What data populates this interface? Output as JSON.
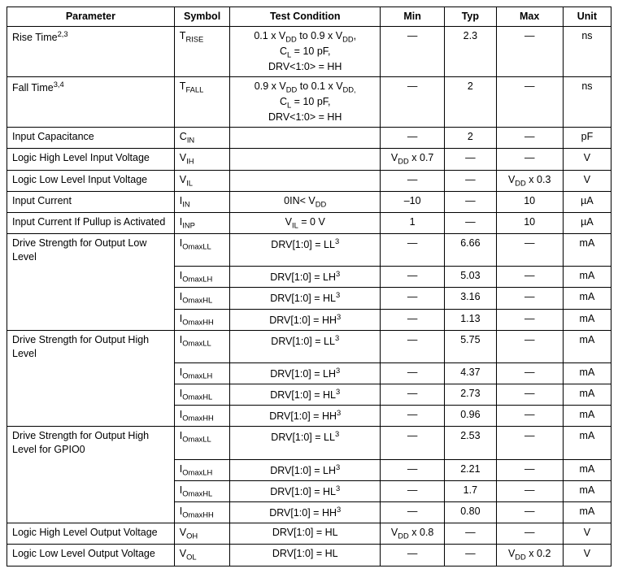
{
  "headers": {
    "parameter": "Parameter",
    "symbol": "Symbol",
    "condition": "Test Condition",
    "min": "Min",
    "typ": "Typ",
    "max": "Max",
    "unit": "Unit"
  },
  "dash": "—",
  "rise": {
    "param_base": "Rise Time",
    "param_sup": "2,3",
    "sym_pre": "T",
    "sym_sub": "RISE",
    "cond_l1a": "0.1 x V",
    "cond_l1b": " to 0.9 x V",
    "cond_l1c": ",",
    "cond_sub_dd": "DD",
    "cond_l2a": "C",
    "cond_l2b": " = 10 pF,",
    "cond_sub_l": "L",
    "cond_l3": "DRV<1:0> = HH",
    "typ": "2.3",
    "unit": "ns"
  },
  "fall": {
    "param_base": "Fall Time",
    "param_sup": "3,4",
    "sym_pre": "T",
    "sym_sub": "FALL",
    "cond_l1a": "0.9 x V",
    "cond_l1b": " to 0.1 x V",
    "cond_l1c": "",
    "cond_sub_dd": "DD",
    "cond_sub_dd2": "DD,",
    "cond_l2a": "C",
    "cond_l2b": " = 10 pF,",
    "cond_sub_l": "L",
    "cond_l3": "DRV<1:0> = HH",
    "typ": "2",
    "unit": "ns"
  },
  "cin": {
    "param": "Input Capacitance",
    "sym_pre": "C",
    "sym_sub": "IN",
    "typ": "2",
    "unit": "pF"
  },
  "vih": {
    "param": "Logic High Level Input Voltage",
    "sym_pre": "V",
    "sym_sub": "IH",
    "min_a": "V",
    "min_sub": "DD",
    "min_b": " x 0.7",
    "unit": "V"
  },
  "vil": {
    "param": "Logic Low Level Input Voltage",
    "sym_pre": "V",
    "sym_sub": "IL",
    "max_a": "V",
    "max_sub": "DD",
    "max_b": " x 0.3",
    "unit": "V"
  },
  "iin": {
    "param": "Input Current",
    "sym_pre": "I",
    "sym_sub": "IN",
    "cond_a": "0<V",
    "cond_sub1": "IN",
    "cond_b": "< V",
    "cond_sub2": "DD",
    "min": "–10",
    "max": "10",
    "unit": "µA"
  },
  "iinp": {
    "param": "Input Current If Pullup is Activated",
    "sym_pre": "I",
    "sym_sub": "INP",
    "cond_a": "V",
    "cond_sub": "IL",
    "cond_b": " = 0 V",
    "min": "1",
    "max": "10",
    "unit": "µA"
  },
  "drv_low": {
    "param_l1": "Drive Strength for Output Low",
    "param_l2": "Level",
    "rows": [
      {
        "sym_sub": "OmaxLL",
        "cond": "DRV[1:0] = LL",
        "typ": "6.66"
      },
      {
        "sym_sub": "OmaxLH",
        "cond": "DRV[1:0] = LH",
        "typ": "5.03"
      },
      {
        "sym_sub": "OmaxHL",
        "cond": "DRV[1:0] = HL",
        "typ": "3.16"
      },
      {
        "sym_sub": "OmaxHH",
        "cond": "DRV[1:0] = HH",
        "typ": "1.13"
      }
    ],
    "sym_pre": "I",
    "cond_sup": "3",
    "unit": "mA"
  },
  "drv_high": {
    "param_l1": "Drive Strength for Output High",
    "param_l2": "Level",
    "rows": [
      {
        "sym_sub": "OmaxLL",
        "cond": "DRV[1:0] = LL",
        "typ": "5.75"
      },
      {
        "sym_sub": "OmaxLH",
        "cond": "DRV[1:0] = LH",
        "typ": "4.37"
      },
      {
        "sym_sub": "OmaxHL",
        "cond": "DRV[1:0] = HL",
        "typ": "2.73"
      },
      {
        "sym_sub": "OmaxHH",
        "cond": "DRV[1:0] = HH",
        "typ": "0.96"
      }
    ],
    "sym_pre": "I",
    "cond_sup": "3",
    "unit": "mA"
  },
  "drv_gpio0": {
    "param_l1": "Drive Strength for Output High",
    "param_l2": "Level for GPIO0",
    "rows": [
      {
        "sym_sub": "OmaxLL",
        "cond": "DRV[1:0] = LL",
        "typ": "2.53"
      },
      {
        "sym_sub": "OmaxLH",
        "cond": "DRV[1:0] = LH",
        "typ": "2.21"
      },
      {
        "sym_sub": "OmaxHL",
        "cond": "DRV[1:0] = HL",
        "typ": "1.7"
      },
      {
        "sym_sub": "OmaxHH",
        "cond": "DRV[1:0] = HH",
        "typ": "0.80"
      }
    ],
    "sym_pre": "I",
    "cond_sup": "3",
    "unit": "mA"
  },
  "voh": {
    "param": "Logic High Level Output Voltage",
    "sym_pre": "V",
    "sym_sub": "OH",
    "cond": "DRV[1:0] = HL",
    "min_a": "V",
    "min_sub": "DD",
    "min_b": " x 0.8",
    "unit": "V"
  },
  "vol": {
    "param": "Logic Low Level Output Voltage",
    "sym_pre": "V",
    "sym_sub": "OL",
    "cond": "DRV[1:0] = HL",
    "max_a": "V",
    "max_sub": "DD",
    "max_b": " x 0.2",
    "unit": "V"
  }
}
